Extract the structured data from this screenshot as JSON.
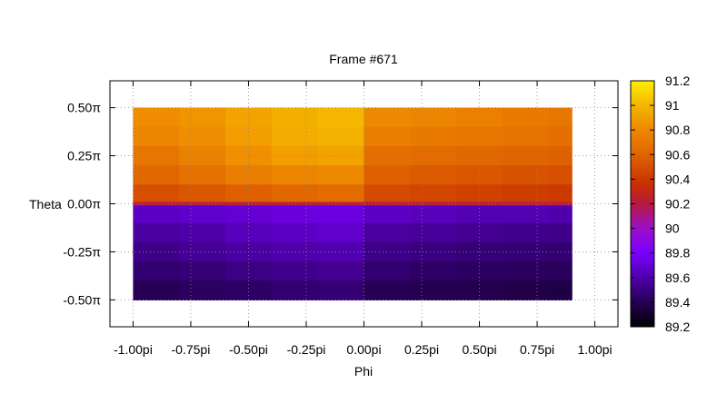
{
  "chart_data": {
    "type": "heatmap",
    "title": "Frame #671",
    "xlabel": "Phi",
    "ylabel": "Theta",
    "xlim": [
      -1.1,
      1.1
    ],
    "ylim": [
      -0.64,
      0.64
    ],
    "x_range_units": "pi",
    "y_range_units": "pi",
    "data_extent": {
      "x": [
        -1.0,
        0.9
      ],
      "y": [
        -0.5,
        0.5
      ]
    },
    "x_ticks": [
      {
        "value": -1.0,
        "label": "-1.00pi"
      },
      {
        "value": -0.75,
        "label": "-0.75pi"
      },
      {
        "value": -0.5,
        "label": "-0.50pi"
      },
      {
        "value": -0.25,
        "label": "-0.25pi"
      },
      {
        "value": 0.0,
        "label": "0.00pi"
      },
      {
        "value": 0.25,
        "label": "0.25pi"
      },
      {
        "value": 0.5,
        "label": "0.50pi"
      },
      {
        "value": 0.75,
        "label": "0.75pi"
      },
      {
        "value": 1.0,
        "label": "1.00pi"
      }
    ],
    "y_ticks": [
      {
        "value": 0.5,
        "label": "0.50π"
      },
      {
        "value": 0.25,
        "label": "0.25π"
      },
      {
        "value": 0.0,
        "label": "0.00π"
      },
      {
        "value": -0.25,
        "label": "-0.25π"
      },
      {
        "value": -0.5,
        "label": "-0.50π"
      }
    ],
    "grid": true,
    "colorbar": {
      "min": 89.2,
      "max": 91.2,
      "ticks": [
        {
          "value": 91.2,
          "label": "91.2"
        },
        {
          "value": 91.0,
          "label": "91"
        },
        {
          "value": 90.8,
          "label": "90.8"
        },
        {
          "value": 90.6,
          "label": "90.6"
        },
        {
          "value": 90.4,
          "label": "90.4"
        },
        {
          "value": 90.2,
          "label": "90.2"
        },
        {
          "value": 90.0,
          "label": "90"
        },
        {
          "value": 89.8,
          "label": "89.8"
        },
        {
          "value": 89.6,
          "label": "89.6"
        },
        {
          "value": 89.4,
          "label": "89.4"
        },
        {
          "value": 89.2,
          "label": "89.2"
        }
      ],
      "palette": "black-blue-purple-red-orange-yellow"
    },
    "grid_values": {
      "phi": [
        -1.0,
        -0.8,
        -0.6,
        -0.4,
        -0.2,
        0.0,
        0.2,
        0.4,
        0.6,
        0.8
      ],
      "theta": [
        0.45,
        0.35,
        0.25,
        0.15,
        0.05,
        -0.05,
        -0.15,
        -0.25,
        -0.35,
        -0.45
      ],
      "z": [
        [
          90.82,
          90.86,
          90.92,
          90.97,
          91.0,
          90.8,
          90.78,
          90.75,
          90.72,
          90.7
        ],
        [
          90.78,
          90.83,
          90.9,
          90.96,
          90.98,
          90.74,
          90.72,
          90.7,
          90.68,
          90.66
        ],
        [
          90.7,
          90.76,
          90.84,
          90.9,
          90.92,
          90.66,
          90.64,
          90.62,
          90.6,
          90.58
        ],
        [
          90.62,
          90.67,
          90.74,
          90.78,
          90.8,
          90.58,
          90.56,
          90.54,
          90.52,
          90.5
        ],
        [
          90.5,
          90.54,
          90.58,
          90.62,
          90.64,
          90.48,
          90.46,
          90.44,
          90.42,
          90.4
        ],
        [
          89.66,
          89.68,
          89.7,
          89.72,
          89.73,
          89.66,
          89.64,
          89.62,
          89.62,
          89.6
        ],
        [
          89.58,
          89.6,
          89.64,
          89.66,
          89.68,
          89.57,
          89.56,
          89.54,
          89.53,
          89.52
        ],
        [
          89.52,
          89.55,
          89.58,
          89.6,
          89.61,
          89.52,
          89.5,
          89.48,
          89.47,
          89.46
        ],
        [
          89.46,
          89.48,
          89.51,
          89.53,
          89.54,
          89.46,
          89.44,
          89.43,
          89.42,
          89.41
        ],
        [
          89.4,
          89.42,
          89.44,
          89.46,
          89.47,
          89.4,
          89.39,
          89.38,
          89.37,
          89.36
        ]
      ]
    },
    "boundary_line": {
      "theta": 0.0,
      "value": 90.2
    }
  }
}
